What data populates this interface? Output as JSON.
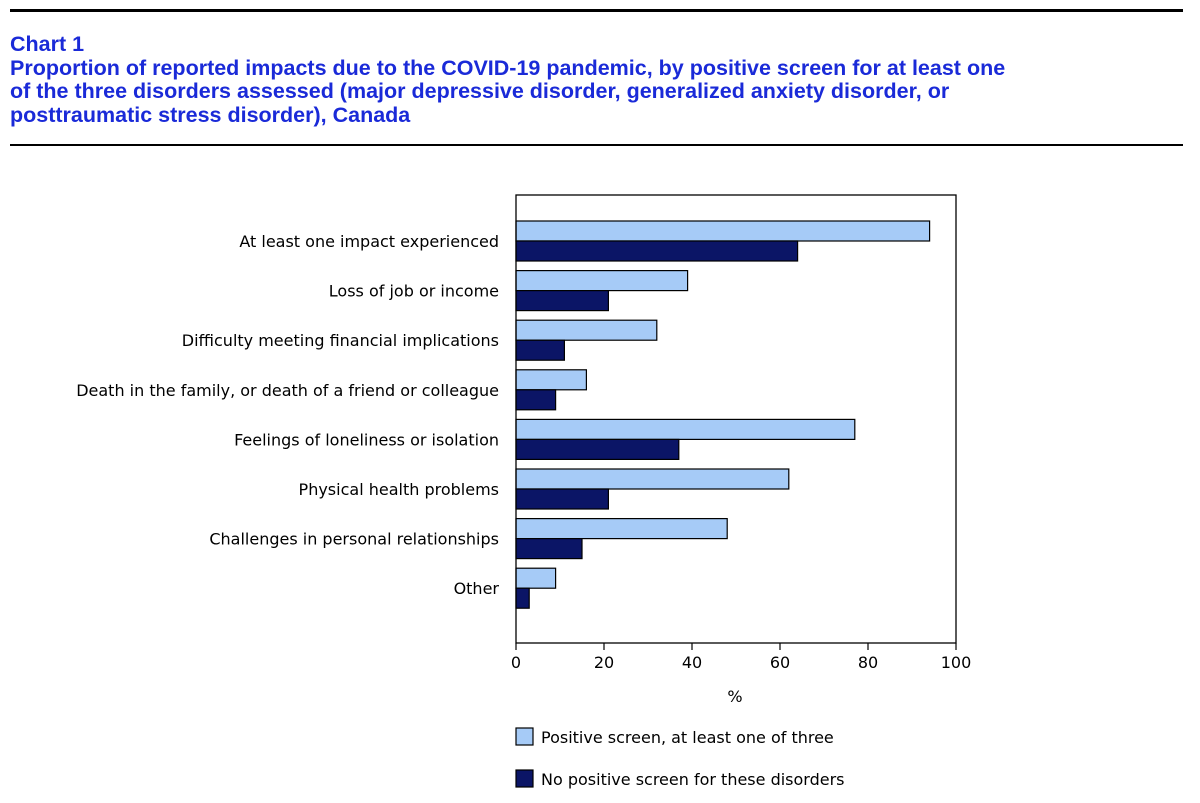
{
  "header": {
    "chart_number": "Chart 1",
    "title_lines": [
      "Proportion of reported impacts due to the COVID-19 pandemic, by positive screen for at least one",
      "of the three disorders assessed (major depressive disorder, generalized anxiety disorder, or",
      "posttraumatic stress disorder), Canada"
    ]
  },
  "chart_data": {
    "type": "bar",
    "orientation": "horizontal",
    "title": "Proportion of reported impacts due to the COVID-19 pandemic, by positive screen for at least one of the three disorders assessed (major depressive disorder, generalized anxiety disorder, or posttraumatic stress disorder), Canada",
    "xlabel": "%",
    "ylabel": "",
    "xlim": [
      0,
      100
    ],
    "xticks": [
      0,
      20,
      40,
      60,
      80,
      100
    ],
    "grid": false,
    "legend_position": "bottom",
    "categories": [
      "At least one impact experienced",
      "Loss of job or income",
      "Difficulty meeting financial implications",
      "Death in the family, or death of a friend or colleague",
      "Feelings of loneliness or isolation",
      "Physical health problems",
      "Challenges in personal relationships",
      "Other"
    ],
    "series": [
      {
        "name": "Positive screen, at least one of three",
        "color": "#a6cbf7",
        "values": [
          94,
          39,
          32,
          16,
          77,
          62,
          48,
          9
        ]
      },
      {
        "name": "No positive screen for these disorders",
        "color": "#0b1566",
        "values": [
          64,
          21,
          11,
          9,
          37,
          21,
          15,
          3
        ]
      }
    ]
  }
}
